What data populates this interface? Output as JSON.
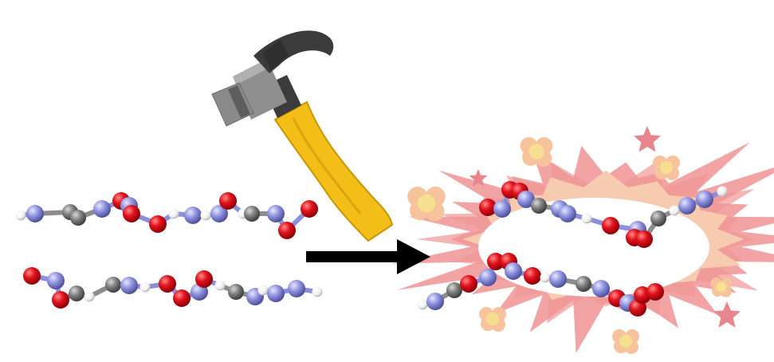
{
  "figure": {
    "panels": [
      {
        "id": "intact-crystal",
        "layers": 2
      },
      {
        "id": "impact",
        "tool": "hammer-icon"
      },
      {
        "id": "decomposed-crystal",
        "layers": 2,
        "effect": "explosion-burst"
      }
    ],
    "arrow": {
      "direction": "right",
      "color": "#000000"
    },
    "colors": {
      "oxygen": "#e0121b",
      "nitrogen": "#8c8fdc",
      "carbon": "#7c7c7c",
      "hydrogen": "#f2f2f2",
      "bond_carbon": "#8d8d8d",
      "hammer_head": "#8f8f8f",
      "hammer_head_dark": "#3b3b3b",
      "hammer_handle": "#f2be17",
      "burst_outer": "#f2a3a3",
      "burst_inner": "#f7cbb0",
      "burst_core": "#ffffff",
      "puff_outer": "#f6c39d",
      "puff_inner": "#f6df90",
      "star": "#e8868e"
    }
  }
}
